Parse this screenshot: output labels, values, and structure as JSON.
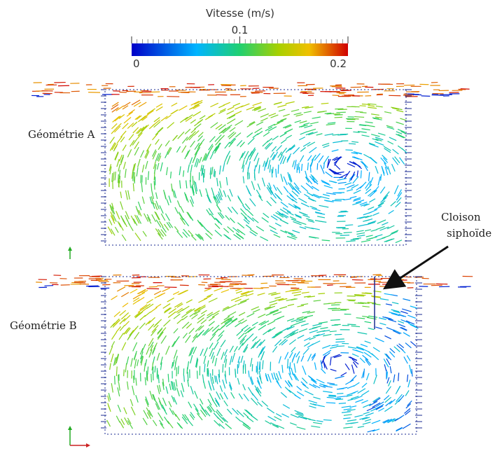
{
  "colorbar": {
    "title": "Vitesse (m/s)",
    "lim": [
      0,
      0.2
    ],
    "ticks": [
      0,
      0.1,
      0.2
    ]
  },
  "panels": [
    {
      "label": "Géométrie A"
    },
    {
      "label": "Géométrie B"
    }
  ],
  "annotation": {
    "lines": [
      "Cloison",
      "siphoïde"
    ]
  }
}
